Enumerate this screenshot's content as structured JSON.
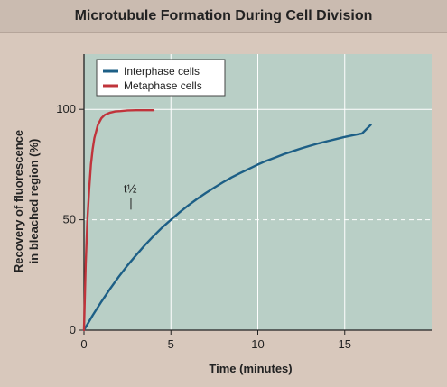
{
  "title": "Microtubule Formation During Cell Division",
  "chart_data": {
    "type": "line",
    "title": "Microtubule Formation During Cell Division",
    "xlabel": "Time (minutes)",
    "ylabel_lines": [
      "Recovery of fluorescence",
      "in bleached region (%)"
    ],
    "xlim": [
      0,
      20
    ],
    "ylim": [
      0,
      125
    ],
    "x_ticks": [
      0,
      5,
      10,
      15
    ],
    "y_ticks": [
      0,
      50,
      100
    ],
    "grid": true,
    "legend_position": "top-left",
    "colors": {
      "plot_bg": "#b9cfc6",
      "outer_bg": "#d8c8bc",
      "grid": "#ffffff",
      "interphase": "#1d5f86",
      "metaphase": "#c0343b"
    },
    "reference_line": {
      "y": 50,
      "style": "dashed"
    },
    "annotation": {
      "text": "t½",
      "x": 2.7,
      "y": 55
    },
    "series": [
      {
        "name": "Interphase cells",
        "color": "#1d5f86",
        "x": [
          0,
          0.5,
          1,
          1.5,
          2,
          2.5,
          3,
          3.5,
          4,
          4.5,
          5,
          5.5,
          6,
          6.5,
          7,
          7.5,
          8,
          8.5,
          9,
          9.5,
          10,
          10.5,
          11,
          11.5,
          12,
          12.5,
          13,
          13.5,
          14,
          14.5,
          15,
          15.5,
          16,
          16.5
        ],
        "y": [
          0,
          6.7,
          12.9,
          18.7,
          24.2,
          29.3,
          34.0,
          38.5,
          42.6,
          46.5,
          50.0,
          53.4,
          56.5,
          59.4,
          62.1,
          64.6,
          67.0,
          69.2,
          71.2,
          73.1,
          75.0,
          76.7,
          78.2,
          79.7,
          81.0,
          82.3,
          83.5,
          84.6,
          85.6,
          86.5,
          87.5,
          88.3,
          89.1,
          93.0
        ]
      },
      {
        "name": "Metaphase cells",
        "color": "#c0343b",
        "x": [
          0,
          0.1,
          0.2,
          0.3,
          0.4,
          0.5,
          0.6,
          0.8,
          1,
          1.2,
          1.5,
          1.8,
          2.1,
          2.5,
          3,
          3.5,
          4
        ],
        "y": [
          0,
          30,
          50,
          64,
          75,
          82,
          87,
          93,
          96,
          97.5,
          98.5,
          99,
          99.2,
          99.5,
          99.6,
          99.6,
          99.6
        ]
      }
    ]
  }
}
